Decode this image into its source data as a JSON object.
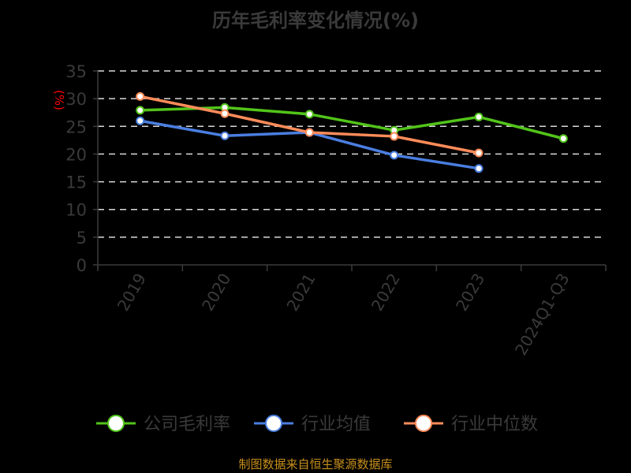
{
  "title": "历年毛利率变化情况(%)",
  "footer": "制图数据来自恒生聚源数据库",
  "chart_data": {
    "type": "line",
    "title": "历年毛利率变化情况(%)",
    "xlabel": "",
    "ylabel": "(%)",
    "ylim": [
      0,
      35
    ],
    "yticks": [
      0,
      5,
      10,
      15,
      20,
      25,
      30,
      35
    ],
    "grid": true,
    "legend_position": "bottom",
    "categories": [
      "2019",
      "2020",
      "2021",
      "2022",
      "2023",
      "2024Q1-Q3"
    ],
    "series": [
      {
        "name": "公司毛利率",
        "color": "#52c41a",
        "values": [
          27.9,
          28.4,
          27.2,
          24.3,
          26.7,
          22.8
        ]
      },
      {
        "name": "行业均值",
        "color": "#4a7ee0",
        "values": [
          26.0,
          23.3,
          23.9,
          19.8,
          17.4,
          null
        ]
      },
      {
        "name": "行业中位数",
        "color": "#ff8c5a",
        "values": [
          30.4,
          27.3,
          23.9,
          23.2,
          20.2,
          null
        ]
      }
    ]
  },
  "colors": {
    "axis_text": "#3a3a3a",
    "ylabel": "#ff0000",
    "grid": "#d9d9d9",
    "footer": "#c8901c",
    "background": "#000000"
  }
}
